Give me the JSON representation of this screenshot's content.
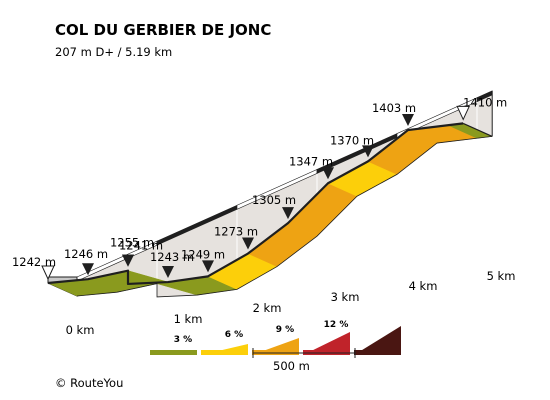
{
  "chart_data": {
    "type": "area",
    "title": "COL DU GERBIER DE JONC",
    "subtitle": "207 m D+ / 5.19 km",
    "x_unit": "km",
    "x_ticks": [
      "0 km",
      "1 km",
      "2 km",
      "3 km",
      "4 km",
      "5 km"
    ],
    "segments": [
      {
        "from_km": 0.0,
        "to_km": 0.5,
        "grade_class": "3 %"
      },
      {
        "from_km": 0.5,
        "to_km": 1.0,
        "grade_class": "3 %"
      },
      {
        "from_km": 1.0,
        "to_km": 1.5,
        "grade_class": "3 %"
      },
      {
        "from_km": 1.5,
        "to_km": 2.0,
        "grade_class": "3 %"
      },
      {
        "from_km": 2.0,
        "to_km": 2.5,
        "grade_class": "6 %"
      },
      {
        "from_km": 2.5,
        "to_km": 3.0,
        "grade_class": "9 %"
      },
      {
        "from_km": 3.0,
        "to_km": 3.5,
        "grade_class": "9 %"
      },
      {
        "from_km": 3.5,
        "to_km": 4.0,
        "grade_class": "6 %"
      },
      {
        "from_km": 4.0,
        "to_km": 4.5,
        "grade_class": "9 %"
      },
      {
        "from_km": 4.5,
        "to_km": 5.0,
        "grade_class": "9 %"
      },
      {
        "from_km": 5.0,
        "to_km": 5.19,
        "grade_class": "3 %"
      }
    ],
    "profile": [
      {
        "km": 0.0,
        "elevation": 1242
      },
      {
        "km": 0.5,
        "elevation": 1246
      },
      {
        "km": 1.0,
        "elevation": 1255
      },
      {
        "km": 1.0,
        "elevation": 1241
      },
      {
        "km": 1.5,
        "elevation": 1243
      },
      {
        "km": 2.0,
        "elevation": 1249
      },
      {
        "km": 2.5,
        "elevation": 1273
      },
      {
        "km": 3.0,
        "elevation": 1305
      },
      {
        "km": 3.5,
        "elevation": 1347
      },
      {
        "km": 4.0,
        "elevation": 1370
      },
      {
        "km": 4.5,
        "elevation": 1403
      },
      {
        "km": 5.19,
        "elevation": 1410
      }
    ],
    "markers": [
      {
        "km": 0.0,
        "label": "1242 m",
        "kind": "start"
      },
      {
        "km": 0.5,
        "label": "1246 m",
        "kind": "point"
      },
      {
        "km": 1.0,
        "label": "1255 m",
        "kind": "point"
      },
      {
        "km": 1.0,
        "label": "1241 m",
        "kind": "point"
      },
      {
        "km": 1.5,
        "label": "1243 m",
        "kind": "point"
      },
      {
        "km": 2.0,
        "label": "1249 m",
        "kind": "point"
      },
      {
        "km": 2.5,
        "label": "1273 m",
        "kind": "point"
      },
      {
        "km": 3.0,
        "label": "1305 m",
        "kind": "point"
      },
      {
        "km": 3.5,
        "label": "1347 m",
        "kind": "point"
      },
      {
        "km": 4.0,
        "label": "1370 m",
        "kind": "point"
      },
      {
        "km": 4.5,
        "label": "1403 m",
        "kind": "point"
      },
      {
        "km": 5.19,
        "label": "1410 m",
        "kind": "end"
      }
    ],
    "legend": [
      {
        "label": "3 %",
        "color": "#8a9a1e"
      },
      {
        "label": "6 %",
        "color": "#fccf0a"
      },
      {
        "label": "9 %",
        "color": "#eea313"
      },
      {
        "label": "12 %",
        "color": "#c0232a"
      },
      {
        "label": "",
        "color": "#4a1612"
      }
    ],
    "scale_label": "500 m",
    "grade_colors": {
      "3 %": "#8a9a1e",
      "6 %": "#fccf0a",
      "9 %": "#eea313"
    },
    "credit": "© RouteYou"
  }
}
